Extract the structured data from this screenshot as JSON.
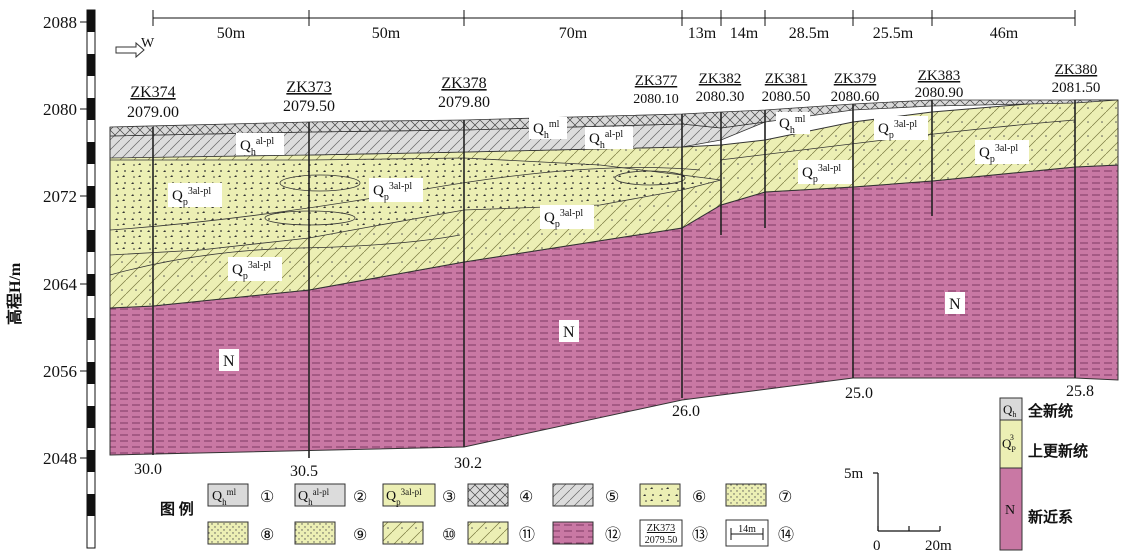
{
  "y_axis": {
    "title": "高程H/m",
    "ticks": [
      "2088",
      "2080",
      "2072",
      "2064",
      "2056",
      "2048"
    ]
  },
  "direction": "W",
  "spacings": [
    "50m",
    "50m",
    "70m",
    "13m",
    "14m",
    "28.5m",
    "25.5m",
    "46m"
  ],
  "boreholes": [
    {
      "id": "ZK374",
      "elev": "2079.00",
      "depth": "30.0"
    },
    {
      "id": "ZK373",
      "elev": "2079.50",
      "depth": "30.5"
    },
    {
      "id": "ZK378",
      "elev": "2079.80",
      "depth": "30.2"
    },
    {
      "id": "ZK377",
      "elev": "2080.10",
      "depth": "26.0"
    },
    {
      "id": "ZK382",
      "elev": "2080.30",
      "depth": ""
    },
    {
      "id": "ZK381",
      "elev": "2080.50",
      "depth": ""
    },
    {
      "id": "ZK379",
      "elev": "2080.60",
      "depth": "25.0"
    },
    {
      "id": "ZK383",
      "elev": "2080.90",
      "depth": ""
    },
    {
      "id": "ZK380",
      "elev": "2081.50",
      "depth": "25.8"
    }
  ],
  "layer_labels": {
    "qhml": {
      "base": "Q",
      "sub": "h",
      "sup": "ml"
    },
    "qhal": {
      "base": "Q",
      "sub": "h",
      "sup": "al-pl"
    },
    "qp3": {
      "base": "Q",
      "sub": "p",
      "sup": "3al-pl"
    },
    "n": "N"
  },
  "legend": {
    "title": "图 例",
    "numbers": [
      "①",
      "②",
      "③",
      "④",
      "⑤",
      "⑥",
      "⑦",
      "⑧",
      "⑨",
      "⑩",
      "⑪",
      "⑫",
      "⑬",
      "⑭"
    ],
    "sample_borehole": {
      "id": "ZK373",
      "elev": "2079.50"
    },
    "sample_length": "14m"
  },
  "strat_key": [
    {
      "symbol": "Qh",
      "label": "全新统",
      "color": "#d9d9d9"
    },
    {
      "symbol": "Q3P",
      "label": "上更新统",
      "color": "#ecefb4"
    },
    {
      "symbol": "N",
      "label": "新近系",
      "color": "#c978a4"
    }
  ],
  "scale": {
    "vertical": "5m",
    "horizontal_start": "0",
    "horizontal_end": "20m"
  },
  "colors": {
    "neogene": "#c978a4",
    "pleistocene": "#ecefb4",
    "holocene_ml": "#d9d9d9",
    "holocene_al": "#dcdcdc"
  }
}
